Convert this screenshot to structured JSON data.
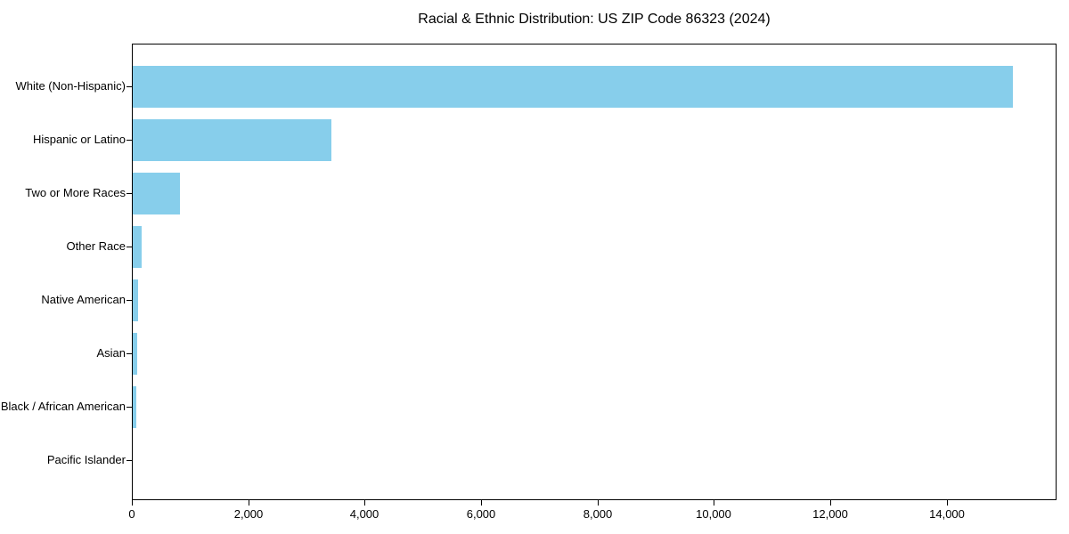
{
  "chart_data": {
    "type": "bar",
    "orientation": "horizontal",
    "title": "Racial & Ethnic Distribution: US ZIP Code 86323 (2024)",
    "categories": [
      "White (Non-Hispanic)",
      "Hispanic or Latino",
      "Two or More Races",
      "Other Race",
      "Native American",
      "Asian",
      "Black / African American",
      "Pacific Islander"
    ],
    "values": [
      15130,
      3410,
      805,
      160,
      90,
      70,
      55,
      0
    ],
    "xlabel": "",
    "ylabel": "",
    "xlim": [
      0,
      15890
    ],
    "xticks": [
      0,
      2000,
      4000,
      6000,
      8000,
      10000,
      12000,
      14000
    ],
    "xticklabels": [
      "0",
      "2,000",
      "4,000",
      "6,000",
      "8,000",
      "10,000",
      "12,000",
      "14,000"
    ],
    "bar_color": "#87CEEB",
    "spine_color": "#000000",
    "text_color": "#000000",
    "background_color": "#FFFFFF",
    "grid": false,
    "legend": "none"
  }
}
